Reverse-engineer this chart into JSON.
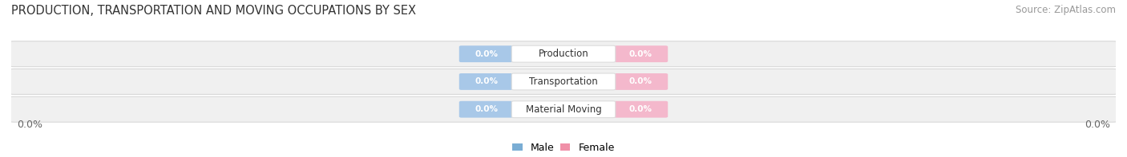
{
  "title": "PRODUCTION, TRANSPORTATION AND MOVING OCCUPATIONS BY SEX",
  "source": "Source: ZipAtlas.com",
  "categories": [
    "Production",
    "Transportation",
    "Material Moving"
  ],
  "male_values": [
    0.0,
    0.0,
    0.0
  ],
  "female_values": [
    0.0,
    0.0,
    0.0
  ],
  "male_color": "#a8c8e8",
  "female_color": "#f4b8cc",
  "label_color_male": "#7aadd4",
  "label_color_female": "#f090a8",
  "title_fontsize": 10.5,
  "source_fontsize": 8.5,
  "bar_height": 0.52,
  "axis_label_left": "0.0%",
  "axis_label_right": "0.0%",
  "legend_male": "Male",
  "legend_female": "Female",
  "bg_color": "#ffffff",
  "row_bg_color": "#f0f0f0",
  "row_border_color": "#d8d8d8"
}
